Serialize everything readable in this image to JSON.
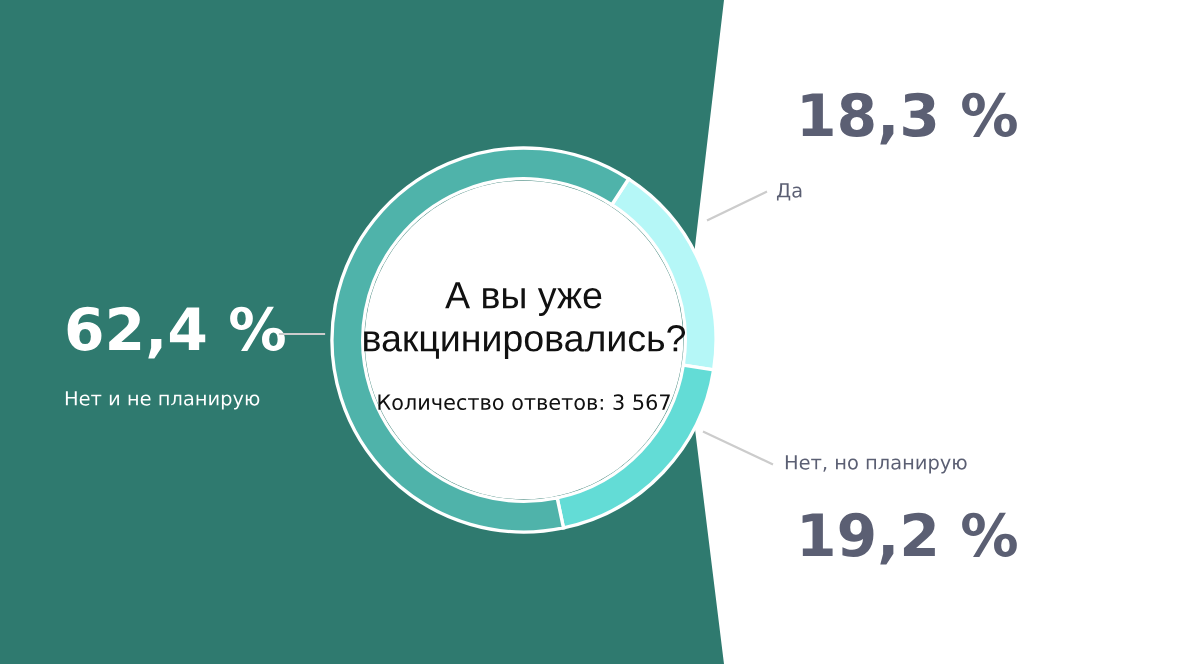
{
  "chart_data": {
    "type": "donut",
    "title": "А вы уже\nвакцинировались?",
    "annotations": [
      "Количество ответов: 3 567"
    ],
    "categories": [
      "Да",
      "Нет, но планирую",
      "Нет и не планирую"
    ],
    "values": [
      18.3,
      19.2,
      62.4
    ],
    "value_labels": [
      "18,3 %",
      "19,2 %",
      "62,4 %"
    ],
    "colors": [
      "#b5f7f7",
      "#63dcd6",
      "#4fb3aa"
    ],
    "legend": false
  }
}
